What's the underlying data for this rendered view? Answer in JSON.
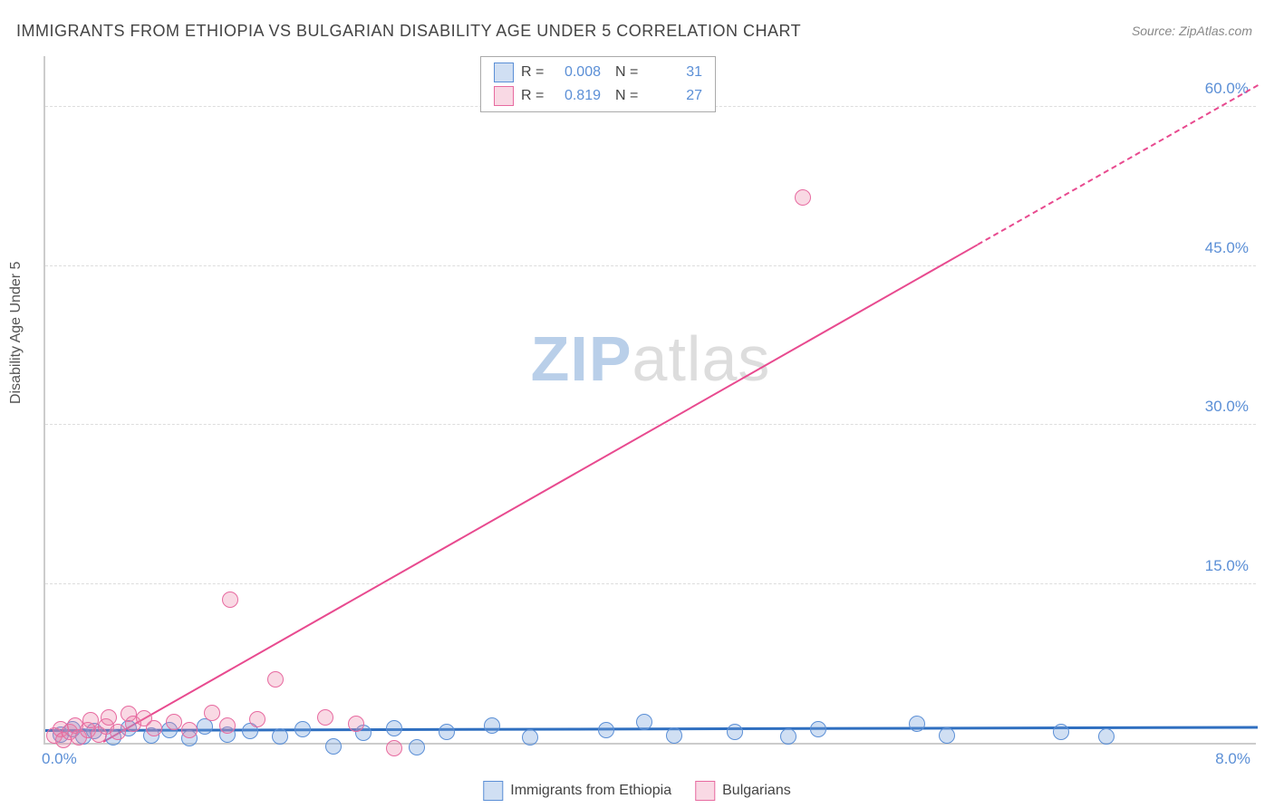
{
  "title": "IMMIGRANTS FROM ETHIOPIA VS BULGARIAN DISABILITY AGE UNDER 5 CORRELATION CHART",
  "source_prefix": "Source: ",
  "source_name": "ZipAtlas.com",
  "y_axis_title": "Disability Age Under 5",
  "watermark_zip": "ZIP",
  "watermark_atlas": "atlas",
  "watermark_zip_color": "#b9cfe9",
  "watermark_atlas_color": "#dddddd",
  "chart": {
    "type": "scatter",
    "background_color": "#ffffff",
    "grid_dash_color": "#dddddd",
    "axis_line_color": "#cccccc",
    "xlim": [
      0.0,
      8.0
    ],
    "ylim": [
      0.0,
      65.0
    ],
    "x_tick_labels": [
      "0.0%",
      "8.0%"
    ],
    "y_ticks": [
      {
        "value": 15.0,
        "label": "15.0%"
      },
      {
        "value": 30.0,
        "label": "30.0%"
      },
      {
        "value": 45.0,
        "label": "45.0%"
      },
      {
        "value": 60.0,
        "label": "60.0%"
      }
    ],
    "series": [
      {
        "id": "ethiopia",
        "name": "Immigrants from Ethiopia",
        "marker_fill": "rgba(121,163,220,0.35)",
        "marker_stroke": "#5b8fd6",
        "marker_radius": 9,
        "R": "0.008",
        "N": "31",
        "trend": {
          "x1": 0.0,
          "y1": 1.0,
          "x2": 8.0,
          "y2": 1.3,
          "color": "#2f6fc0",
          "width": 3,
          "dashed": false
        },
        "points": [
          {
            "x": 0.1,
            "y": 0.8
          },
          {
            "x": 0.18,
            "y": 1.3
          },
          {
            "x": 0.25,
            "y": 0.6
          },
          {
            "x": 0.32,
            "y": 1.1
          },
          {
            "x": 0.45,
            "y": 0.5
          },
          {
            "x": 0.55,
            "y": 1.4
          },
          {
            "x": 0.7,
            "y": 0.7
          },
          {
            "x": 0.82,
            "y": 1.2
          },
          {
            "x": 0.95,
            "y": 0.4
          },
          {
            "x": 1.05,
            "y": 1.5
          },
          {
            "x": 1.2,
            "y": 0.8
          },
          {
            "x": 1.35,
            "y": 1.1
          },
          {
            "x": 1.55,
            "y": 0.6
          },
          {
            "x": 1.7,
            "y": 1.3
          },
          {
            "x": 1.9,
            "y": -0.3
          },
          {
            "x": 2.1,
            "y": 0.9
          },
          {
            "x": 2.3,
            "y": 1.4
          },
          {
            "x": 2.45,
            "y": -0.4
          },
          {
            "x": 2.65,
            "y": 1.0
          },
          {
            "x": 2.95,
            "y": 1.6
          },
          {
            "x": 3.2,
            "y": 0.5
          },
          {
            "x": 3.7,
            "y": 1.2
          },
          {
            "x": 3.95,
            "y": 2.0
          },
          {
            "x": 4.15,
            "y": 0.7
          },
          {
            "x": 4.55,
            "y": 1.0
          },
          {
            "x": 4.9,
            "y": 0.6
          },
          {
            "x": 5.1,
            "y": 1.3
          },
          {
            "x": 5.75,
            "y": 1.8
          },
          {
            "x": 5.95,
            "y": 0.7
          },
          {
            "x": 6.7,
            "y": 1.0
          },
          {
            "x": 7.0,
            "y": 0.6
          }
        ]
      },
      {
        "id": "bulgarians",
        "name": "Bulgarians",
        "marker_fill": "rgba(235,130,165,0.30)",
        "marker_stroke": "#e76aa0",
        "marker_radius": 9,
        "R": "0.819",
        "N": "27",
        "trend": {
          "x1": 0.38,
          "y1": 0.0,
          "x2": 8.0,
          "y2": 62.0,
          "color": "#e84a8f",
          "width": 2,
          "dashed_from_x": 6.15
        },
        "points": [
          {
            "x": 0.06,
            "y": 0.7
          },
          {
            "x": 0.1,
            "y": 1.3
          },
          {
            "x": 0.12,
            "y": 0.3
          },
          {
            "x": 0.16,
            "y": 1.0
          },
          {
            "x": 0.2,
            "y": 1.6
          },
          {
            "x": 0.22,
            "y": 0.5
          },
          {
            "x": 0.28,
            "y": 1.2
          },
          {
            "x": 0.3,
            "y": 2.1
          },
          {
            "x": 0.35,
            "y": 0.8
          },
          {
            "x": 0.4,
            "y": 1.5
          },
          {
            "x": 0.42,
            "y": 2.4
          },
          {
            "x": 0.48,
            "y": 1.0
          },
          {
            "x": 0.55,
            "y": 2.7
          },
          {
            "x": 0.58,
            "y": 1.8
          },
          {
            "x": 0.65,
            "y": 2.3
          },
          {
            "x": 0.72,
            "y": 1.4
          },
          {
            "x": 0.85,
            "y": 2.0
          },
          {
            "x": 0.95,
            "y": 1.2
          },
          {
            "x": 1.1,
            "y": 2.8
          },
          {
            "x": 1.2,
            "y": 1.6
          },
          {
            "x": 1.22,
            "y": 13.5
          },
          {
            "x": 1.4,
            "y": 2.2
          },
          {
            "x": 1.52,
            "y": 6.0
          },
          {
            "x": 1.85,
            "y": 2.4
          },
          {
            "x": 2.05,
            "y": 1.8
          },
          {
            "x": 2.3,
            "y": -0.5
          },
          {
            "x": 5.0,
            "y": 51.5
          }
        ]
      }
    ]
  },
  "legend_top": {
    "r_label": "R =",
    "n_label": "N ="
  },
  "legend_bottom_items": [
    {
      "swatch_fill": "rgba(121,163,220,0.35)",
      "swatch_stroke": "#5b8fd6",
      "label": "Immigrants from Ethiopia"
    },
    {
      "swatch_fill": "rgba(235,130,165,0.30)",
      "swatch_stroke": "#e76aa0",
      "label": "Bulgarians"
    }
  ]
}
